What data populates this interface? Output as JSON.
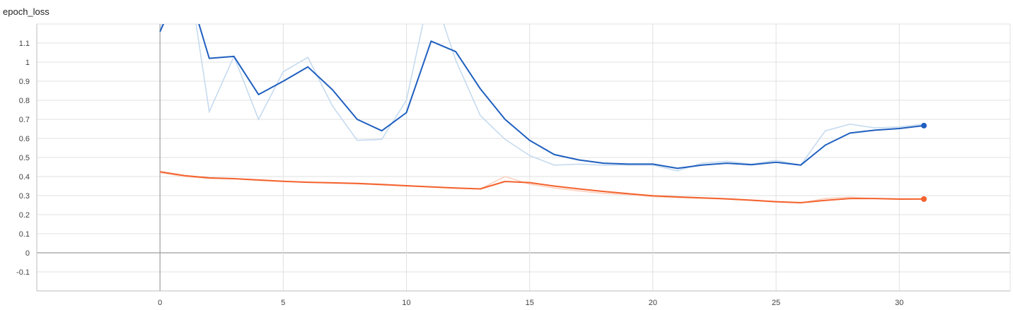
{
  "header": {
    "title": "epoch_loss"
  },
  "chart_data": {
    "type": "line",
    "title": "epoch_loss",
    "xlabel": "",
    "ylabel": "",
    "xlim": [
      -5,
      34.5
    ],
    "ylim": [
      -0.2,
      1.2
    ],
    "x_ticks": [
      0,
      5,
      10,
      15,
      20,
      25,
      30
    ],
    "y_ticks": [
      -0.1,
      0,
      0.1,
      0.2,
      0.3,
      0.4,
      0.5,
      0.6,
      0.7,
      0.8,
      0.9,
      1,
      1.1
    ],
    "grid": true,
    "series": [
      {
        "color": "#1f5fbf",
        "raw_color": "#c6dbef",
        "x": [
          0,
          1,
          2,
          3,
          4,
          5,
          6,
          7,
          8,
          9,
          10,
          11,
          12,
          13,
          14,
          15,
          16,
          17,
          18,
          19,
          20,
          21,
          22,
          23,
          24,
          25,
          26,
          27,
          28,
          29,
          30,
          31
        ],
        "smoothed": [
          1.16,
          1.45,
          1.02,
          1.03,
          0.83,
          0.9,
          0.975,
          0.855,
          0.7,
          0.64,
          0.735,
          1.11,
          1.055,
          0.86,
          0.7,
          0.59,
          0.515,
          0.487,
          0.47,
          0.465,
          0.465,
          0.443,
          0.46,
          0.47,
          0.462,
          0.475,
          0.46,
          0.565,
          0.628,
          0.643,
          0.652,
          0.667
        ],
        "raw": [
          1.16,
          1.6,
          0.74,
          1.03,
          0.7,
          0.95,
          1.025,
          0.77,
          0.59,
          0.595,
          0.8,
          1.4,
          1.01,
          0.72,
          0.595,
          0.51,
          0.46,
          0.465,
          0.46,
          0.46,
          0.46,
          0.43,
          0.47,
          0.48,
          0.465,
          0.485,
          0.46,
          0.64,
          0.675,
          0.655,
          0.66,
          0.675
        ]
      },
      {
        "color": "#f4622d",
        "raw_color": "#fbd0bf",
        "x": [
          0,
          1,
          2,
          3,
          4,
          5,
          6,
          7,
          8,
          9,
          10,
          11,
          12,
          13,
          14,
          15,
          16,
          17,
          18,
          19,
          20,
          21,
          22,
          23,
          24,
          25,
          26,
          27,
          28,
          29,
          30,
          31
        ],
        "smoothed": [
          0.425,
          0.405,
          0.393,
          0.389,
          0.382,
          0.375,
          0.37,
          0.367,
          0.364,
          0.358,
          0.352,
          0.346,
          0.34,
          0.335,
          0.374,
          0.368,
          0.35,
          0.335,
          0.322,
          0.31,
          0.299,
          0.293,
          0.288,
          0.283,
          0.276,
          0.268,
          0.263,
          0.275,
          0.285,
          0.285,
          0.282,
          0.282
        ],
        "raw": [
          0.42,
          0.4,
          0.39,
          0.388,
          0.38,
          0.374,
          0.37,
          0.366,
          0.362,
          0.356,
          0.35,
          0.345,
          0.338,
          0.335,
          0.4,
          0.36,
          0.34,
          0.325,
          0.312,
          0.305,
          0.295,
          0.29,
          0.286,
          0.281,
          0.274,
          0.266,
          0.262,
          0.285,
          0.292,
          0.284,
          0.28,
          0.284
        ]
      }
    ]
  }
}
